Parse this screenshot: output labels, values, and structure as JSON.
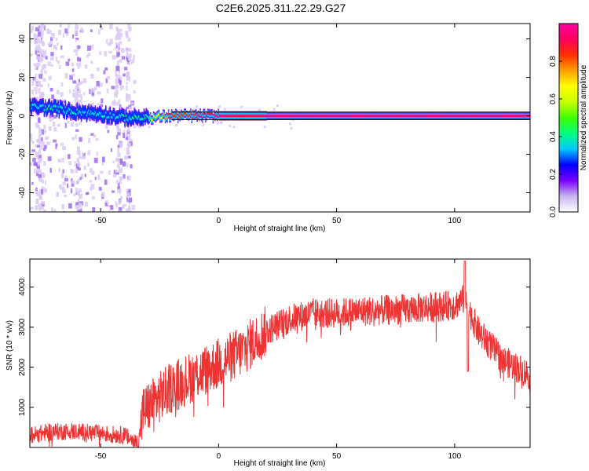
{
  "title": "C2E6.2025.311.22.29.G27",
  "chart_data": [
    {
      "type": "heatmap",
      "title": "C2E6.2025.311.22.29.G27",
      "xlabel": "Height of straight line (km)",
      "ylabel": "Frequency (Hz)",
      "xlim": [
        -80,
        132
      ],
      "ylim": [
        -50,
        48
      ],
      "xticks": [
        -50,
        0,
        50,
        100
      ],
      "yticks": [
        -40,
        -20,
        0,
        20,
        40
      ],
      "colorbar": {
        "label": "Normalized spectral amplitude",
        "range": [
          0.0,
          1.0
        ],
        "ticks": [
          0.0,
          0.2,
          0.4,
          0.6,
          0.8
        ],
        "tick_labels": [
          "0.0",
          "0.2",
          "0.4",
          "0.6",
          "0.8"
        ],
        "colors": [
          "#ffffff",
          "#c8b4f0",
          "#7a00ff",
          "#0000ff",
          "#00c8ff",
          "#00ff80",
          "#40ff00",
          "#c8ff00",
          "#ffff00",
          "#ffa000",
          "#ff3000",
          "#ff0060",
          "#ff00a0"
        ]
      },
      "ridge": {
        "description_points_x": [
          -80,
          -70,
          -60,
          -50,
          -40,
          -30,
          -20,
          0,
          20,
          132
        ],
        "frequency_hz": [
          5,
          4,
          2,
          1,
          -1,
          -1,
          0,
          0,
          0,
          0
        ],
        "amplitude": [
          0.45,
          0.45,
          0.45,
          0.5,
          0.4,
          0.5,
          0.85,
          0.9,
          0.9,
          0.92
        ]
      },
      "band_lines_hz": [
        2,
        -2
      ]
    },
    {
      "type": "line",
      "xlabel": "Height of straight line (km)",
      "ylabel": "SNR (10 * v/v)",
      "xlim": [
        -80,
        132
      ],
      "ylim": [
        0,
        4700
      ],
      "xticks": [
        -50,
        0,
        50,
        100
      ],
      "yticks": [
        1000,
        2000,
        3000,
        4000
      ],
      "line_color": "#ee3333",
      "trend": {
        "x": [
          -80,
          -70,
          -60,
          -50,
          -40,
          -34,
          -32,
          -20,
          0,
          10,
          20,
          30,
          40,
          50,
          60,
          80,
          90,
          100,
          104,
          110,
          120,
          132
        ],
        "y": [
          300,
          400,
          400,
          350,
          300,
          100,
          900,
          1500,
          2100,
          2400,
          2900,
          3200,
          3350,
          3350,
          3400,
          3450,
          3500,
          3550,
          3700,
          2900,
          2200,
          1800
        ]
      }
    }
  ]
}
